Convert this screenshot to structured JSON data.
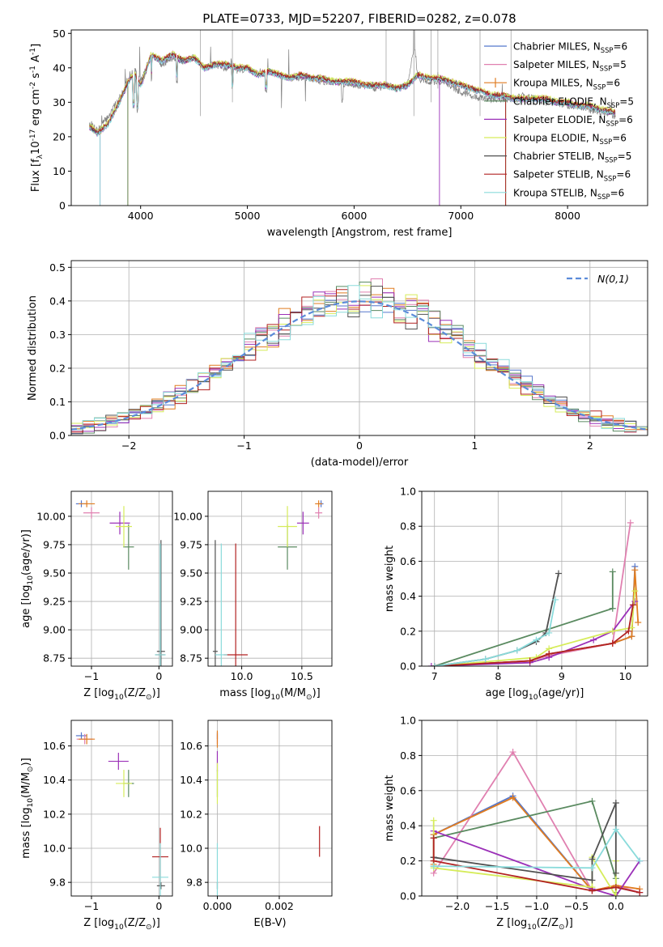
{
  "figure": {
    "title": "PLATE=0733, MJD=52207, FIBERID=0282, z=0.078"
  },
  "series_names": [
    "Chabrier MILES, N$_{SSP}$=6",
    "Salpeter MILES, N$_{SSP}$=5",
    "Kroupa MILES, N$_{SSP}$=6",
    "Chabrier ELODIE, N$_{SSP}$=5",
    "Salpeter ELODIE, N$_{SSP}$=6",
    "Kroupa ELODIE, N$_{SSP}$=6",
    "Chabrier STELIB, N$_{SSP}$=5",
    "Salpeter STELIB, N$_{SSP}$=6",
    "Kroupa STELIB, N$_{SSP}$=6"
  ],
  "series_colors": [
    "#5577cc",
    "#e080b0",
    "#e07c20",
    "#5a8a60",
    "#9b30b8",
    "#d6ec5a",
    "#505050",
    "#b22222",
    "#8adbdb"
  ],
  "chart_data": [
    {
      "id": "spectrum",
      "type": "line",
      "xlabel": "wavelength [Angstrom, rest frame]",
      "ylabel": "Flux [f$_\\lambda$10$^{-17}$ erg cm$^{-2}$ s$^{-1}$ A$^{-1}$]",
      "xlim": [
        3350,
        8750
      ],
      "ylim": [
        0,
        51
      ],
      "xticks": [
        4000,
        5000,
        6000,
        7000,
        8000
      ],
      "yticks": [
        0,
        10,
        20,
        30,
        40,
        50
      ],
      "data_series": {
        "name": "data",
        "color": "#808080",
        "x": [
          3520,
          3600,
          3700,
          3800,
          3900,
          3950,
          4000,
          4050,
          4100,
          4200,
          4300,
          4400,
          4500,
          4600,
          4700,
          4800,
          4860,
          4900,
          5000,
          5100,
          5200,
          5300,
          5400,
          5500,
          5600,
          5700,
          5800,
          5900,
          6000,
          6100,
          6200,
          6300,
          6400,
          6500,
          6563,
          6600,
          6700,
          6800,
          6900,
          7000,
          7100,
          7200,
          7300,
          7400,
          7500,
          7600,
          7700,
          7800,
          7900,
          8000,
          8100,
          8200,
          8300,
          8450
        ],
        "y": [
          24,
          22,
          26,
          31,
          38,
          39,
          36,
          40,
          44,
          41,
          43,
          42,
          43,
          40,
          41,
          40,
          42,
          39,
          40,
          38,
          39,
          38,
          37,
          37,
          37,
          36,
          36,
          35,
          35,
          35,
          34,
          35,
          34,
          35,
          47,
          37,
          36,
          36,
          35,
          33,
          32,
          31,
          31,
          31,
          31,
          32,
          31,
          30,
          30,
          29,
          29,
          28,
          27,
          26
        ]
      },
      "model_series": {
        "x": [
          3520,
          3600,
          3700,
          3800,
          3900,
          3950,
          4000,
          4050,
          4100,
          4200,
          4300,
          4400,
          4500,
          4600,
          4700,
          4800,
          4900,
          5000,
          5100,
          5200,
          5300,
          5400,
          5500,
          5600,
          5700,
          5800,
          5900,
          6000,
          6100,
          6200,
          6300,
          6400,
          6500,
          6600,
          6700,
          6800,
          6900,
          7000,
          7100,
          7200,
          7300,
          7400,
          7500,
          7600,
          7700,
          7800,
          7900,
          8000,
          8100,
          8200,
          8300,
          8450
        ],
        "y": [
          23,
          21,
          24,
          30,
          37,
          38,
          35,
          39,
          44,
          42,
          44,
          42,
          43,
          40,
          41,
          41,
          40,
          40,
          38,
          39,
          38,
          37,
          38,
          37,
          37,
          36,
          36,
          36,
          35,
          35,
          35,
          34,
          35,
          38,
          37,
          37,
          36,
          35,
          34,
          33,
          32,
          32,
          31,
          31,
          31,
          31,
          30,
          30,
          29,
          29,
          28,
          27
        ],
        "offsets": [
          0,
          0.8,
          -0.6,
          0.5,
          -0.9,
          1.1,
          -0.3,
          0.4,
          -1.0
        ],
        "drop_x": [
          3620,
          3620,
          3880,
          3880,
          6800,
          7420,
          7420,
          7420,
          3620
        ]
      },
      "legend_position": "upper right"
    },
    {
      "id": "residuals",
      "type": "histogram",
      "xlabel": "(data-model)/error",
      "ylabel": "Normed distribution",
      "xlim": [
        -2.5,
        2.5
      ],
      "ylim": [
        0,
        0.52
      ],
      "xticks": [
        -2,
        -1,
        0,
        1,
        2
      ],
      "yticks": [
        0.0,
        0.1,
        0.2,
        0.3,
        0.4,
        0.5
      ],
      "grid": true,
      "bin_width": 0.1,
      "reference_curve": {
        "name": "$\\mathcal{N}(0,1)$",
        "mean": 0,
        "sigma": 1,
        "style": "dashed",
        "color": "#5b8bd9"
      },
      "legend_position": "upper right"
    },
    {
      "id": "age_vs_Z",
      "type": "scatter",
      "xlabel": "Z [log$_{10}$(Z/Z$_\\odot$)]",
      "ylabel": "age  [log$_{10}$(age/yr)]",
      "xlim": [
        -1.3,
        0.2
      ],
      "ylim": [
        8.68,
        10.22
      ],
      "xticks": [
        -1,
        0
      ],
      "yticks": [
        8.75,
        9.0,
        9.25,
        9.5,
        9.75,
        10.0
      ],
      "grid": true,
      "points": [
        {
          "x": -1.15,
          "y": 10.11,
          "xerr": 0.08,
          "yerr": 0.03
        },
        {
          "x": -1.0,
          "y": 10.03,
          "xerr": 0.12,
          "yerr": 0.05
        },
        {
          "x": -1.07,
          "y": 10.11,
          "xerr": 0.12,
          "yerr": 0.03
        },
        {
          "x": -0.45,
          "y": 9.73,
          "xerr": 0.08,
          "yerr": 0.2
        },
        {
          "x": -0.58,
          "y": 9.94,
          "xerr": 0.15,
          "yerr": 0.1
        },
        {
          "x": -0.52,
          "y": 9.91,
          "xerr": 0.12,
          "yerr": 0.18
        },
        {
          "x": 0.03,
          "y": 8.81,
          "xerr": 0.06,
          "yerr": 0.98
        },
        {
          "x": 0.02,
          "y": 8.78,
          "xerr": 0.07,
          "yerr": 0.02
        },
        {
          "x": 0.02,
          "y": 8.78,
          "xerr": 0.08,
          "yerr": 0.98
        }
      ]
    },
    {
      "id": "age_vs_mass",
      "type": "scatter",
      "xlabel": "mass [log$_{10}$(M/M$_\\odot$)]",
      "ylabel": "",
      "xlim": [
        9.72,
        10.75
      ],
      "ylim": [
        8.68,
        10.22
      ],
      "xticks": [
        10.0,
        10.5
      ],
      "yticks": [
        8.75,
        9.0,
        9.25,
        9.5,
        9.75,
        10.0
      ],
      "grid": true,
      "points": [
        {
          "x": 10.66,
          "y": 10.11,
          "xerr": 0.02,
          "yerr": 0.03
        },
        {
          "x": 10.64,
          "y": 10.03,
          "xerr": 0.03,
          "yerr": 0.05
        },
        {
          "x": 10.64,
          "y": 10.11,
          "xerr": 0.03,
          "yerr": 0.03
        },
        {
          "x": 10.38,
          "y": 9.73,
          "xerr": 0.08,
          "yerr": 0.2
        },
        {
          "x": 10.51,
          "y": 9.94,
          "xerr": 0.05,
          "yerr": 0.1
        },
        {
          "x": 10.38,
          "y": 9.91,
          "xerr": 0.08,
          "yerr": 0.18
        },
        {
          "x": 9.78,
          "y": 8.81,
          "xerr": 0.02,
          "yerr": 0.98
        },
        {
          "x": 9.95,
          "y": 8.78,
          "xerr": 0.1,
          "yerr": 0.98
        },
        {
          "x": 9.83,
          "y": 8.78,
          "xerr": 0.05,
          "yerr": 0.98
        }
      ]
    },
    {
      "id": "weight_vs_age",
      "type": "line",
      "xlabel": "age  [log$_{10}$(age/yr)]",
      "ylabel": "mass weight",
      "xlim": [
        6.8,
        10.35
      ],
      "ylim": [
        0,
        1
      ],
      "xticks": [
        7,
        8,
        9,
        10
      ],
      "yticks": [
        0.0,
        0.2,
        0.4,
        0.6,
        0.8,
        1.0
      ],
      "grid": true,
      "series": [
        {
          "x": [
            7.0,
            8.5,
            8.8,
            9.8,
            10.1,
            10.15
          ],
          "y": [
            0.0,
            0.03,
            0.07,
            0.13,
            0.17,
            0.57
          ]
        },
        {
          "x": [
            7.0,
            8.5,
            8.8,
            9.8,
            10.08
          ],
          "y": [
            0.0,
            0.03,
            0.06,
            0.13,
            0.82
          ]
        },
        {
          "x": [
            7.0,
            8.5,
            8.8,
            9.8,
            10.1,
            10.15,
            10.2
          ],
          "y": [
            0.0,
            0.03,
            0.07,
            0.13,
            0.17,
            0.55,
            0.25
          ]
        },
        {
          "x": [
            7.0,
            9.8,
            9.8
          ],
          "y": [
            0.0,
            0.33,
            0.54
          ]
        },
        {
          "x": [
            6.95,
            8.5,
            8.8,
            9.5,
            9.8,
            10.15
          ],
          "y": [
            0.0,
            0.02,
            0.05,
            0.15,
            0.2,
            0.37
          ]
        },
        {
          "x": [
            7.0,
            8.6,
            8.8,
            9.8,
            10.1,
            10.15
          ],
          "y": [
            0.0,
            0.05,
            0.1,
            0.2,
            0.22,
            0.43
          ]
        },
        {
          "x": [
            7.0,
            7.8,
            8.3,
            8.6,
            8.75,
            8.95
          ],
          "y": [
            0.0,
            0.04,
            0.09,
            0.14,
            0.19,
            0.53
          ]
        },
        {
          "x": [
            7.0,
            8.5,
            8.8,
            9.8,
            10.05,
            10.12
          ],
          "y": [
            0.0,
            0.03,
            0.07,
            0.13,
            0.2,
            0.35
          ]
        },
        {
          "x": [
            7.0,
            7.8,
            8.3,
            8.6,
            8.8,
            8.9
          ],
          "y": [
            0.0,
            0.04,
            0.09,
            0.15,
            0.19,
            0.38
          ]
        }
      ]
    },
    {
      "id": "mass_vs_Z",
      "type": "scatter",
      "xlabel": "Z [log$_{10}$(Z/Z$_\\odot$)]",
      "ylabel": "mass [log$_{10}$(M/M$_\\odot$)]",
      "xlim": [
        -1.3,
        0.2
      ],
      "ylim": [
        9.72,
        10.75
      ],
      "xticks": [
        -1,
        0
      ],
      "yticks": [
        9.8,
        10.0,
        10.2,
        10.4,
        10.6
      ],
      "grid": true,
      "points": [
        {
          "x": -1.15,
          "y": 10.66,
          "xerr": 0.08,
          "yerr": 0.02
        },
        {
          "x": -1.1,
          "y": 10.64,
          "xerr": 0.12,
          "yerr": 0.03
        },
        {
          "x": -1.07,
          "y": 10.64,
          "xerr": 0.12,
          "yerr": 0.03
        },
        {
          "x": -0.45,
          "y": 10.38,
          "xerr": 0.08,
          "yerr": 0.08
        },
        {
          "x": -0.6,
          "y": 10.51,
          "xerr": 0.15,
          "yerr": 0.05
        },
        {
          "x": -0.52,
          "y": 10.38,
          "xerr": 0.12,
          "yerr": 0.08
        },
        {
          "x": 0.03,
          "y": 9.78,
          "xerr": 0.06,
          "yerr": 0.02
        },
        {
          "x": 0.02,
          "y": 9.95,
          "xerr": 0.12,
          "yerr": 0.17
        },
        {
          "x": 0.02,
          "y": 9.83,
          "xerr": 0.12,
          "yerr": 0.2
        }
      ]
    },
    {
      "id": "mass_vs_ebv",
      "type": "scatter",
      "xlabel": "E(B-V)",
      "ylabel": "",
      "xlim": [
        -0.0003,
        0.0037
      ],
      "ylim": [
        9.72,
        10.75
      ],
      "xticks": [
        0.0,
        0.002
      ],
      "xticklabels": [
        "0.000",
        "0.002"
      ],
      "yticks": [
        9.8,
        10.0,
        10.2,
        10.4,
        10.6
      ],
      "grid": true,
      "points": [
        {
          "x": 0.0,
          "y": 10.66,
          "yerr": 0.02
        },
        {
          "x": 0.0,
          "y": 10.64,
          "yerr": 0.03
        },
        {
          "x": 0.0,
          "y": 10.64,
          "yerr": 0.05
        },
        {
          "x": 0.0,
          "y": 10.38,
          "yerr": 0.08
        },
        {
          "x": 0.0,
          "y": 10.51,
          "yerr": 0.06
        },
        {
          "x": 0.0,
          "y": 10.38,
          "yerr": 0.12
        },
        {
          "x": 0.0,
          "y": 9.78,
          "yerr": 0.02
        },
        {
          "x": 0.0033,
          "y": 10.04,
          "yerr": 0.09
        },
        {
          "x": 0.0,
          "y": 9.83,
          "yerr": 0.2
        }
      ]
    },
    {
      "id": "weight_vs_Z",
      "type": "line",
      "xlabel": "Z [log$_{10}$(Z/Z$_\\odot$)]",
      "ylabel": "mass weight",
      "xlim": [
        -2.45,
        0.4
      ],
      "ylim": [
        0,
        1
      ],
      "xticks": [
        -2.0,
        -1.5,
        -1.0,
        -0.5,
        0.0
      ],
      "yticks": [
        0.0,
        0.2,
        0.4,
        0.6,
        0.8,
        1.0
      ],
      "grid": true,
      "series": [
        {
          "x": [
            -2.3,
            -2.3,
            -1.3,
            -0.3,
            0.0,
            0.3
          ],
          "y": [
            0.17,
            0.35,
            0.57,
            0.03,
            0.05,
            0.02
          ]
        },
        {
          "x": [
            -2.3,
            -1.3,
            -0.3,
            0.0,
            0.3
          ],
          "y": [
            0.13,
            0.82,
            0.03,
            0.06,
            0.02
          ]
        },
        {
          "x": [
            -2.3,
            -2.3,
            -1.3,
            -0.3,
            0.0,
            0.3
          ],
          "y": [
            0.18,
            0.35,
            0.56,
            0.03,
            0.06,
            0.04
          ]
        },
        {
          "x": [
            -2.3,
            -0.3,
            0.0,
            0.0
          ],
          "y": [
            0.33,
            0.54,
            0.1,
            0.02
          ]
        },
        {
          "x": [
            -2.3,
            -0.3,
            0.0,
            0.3
          ],
          "y": [
            0.37,
            0.04,
            0.0,
            0.2
          ]
        },
        {
          "x": [
            -2.3,
            -2.3,
            -0.3,
            -0.3,
            0.0,
            0.0
          ],
          "y": [
            0.43,
            0.16,
            0.05,
            0.22,
            0.0,
            0.2
          ]
        },
        {
          "x": [
            -2.3,
            -2.3,
            -0.3,
            -0.3,
            0.0,
            0.0
          ],
          "y": [
            0.22,
            0.22,
            0.09,
            0.21,
            0.53,
            0.13
          ]
        },
        {
          "x": [
            -2.3,
            -2.3,
            -0.3,
            0.0,
            0.3
          ],
          "y": [
            0.33,
            0.2,
            0.03,
            0.05,
            0.02
          ]
        },
        {
          "x": [
            -2.3,
            -0.3,
            0.0,
            0.3
          ],
          "y": [
            0.17,
            0.16,
            0.38,
            0.2
          ]
        }
      ]
    }
  ]
}
